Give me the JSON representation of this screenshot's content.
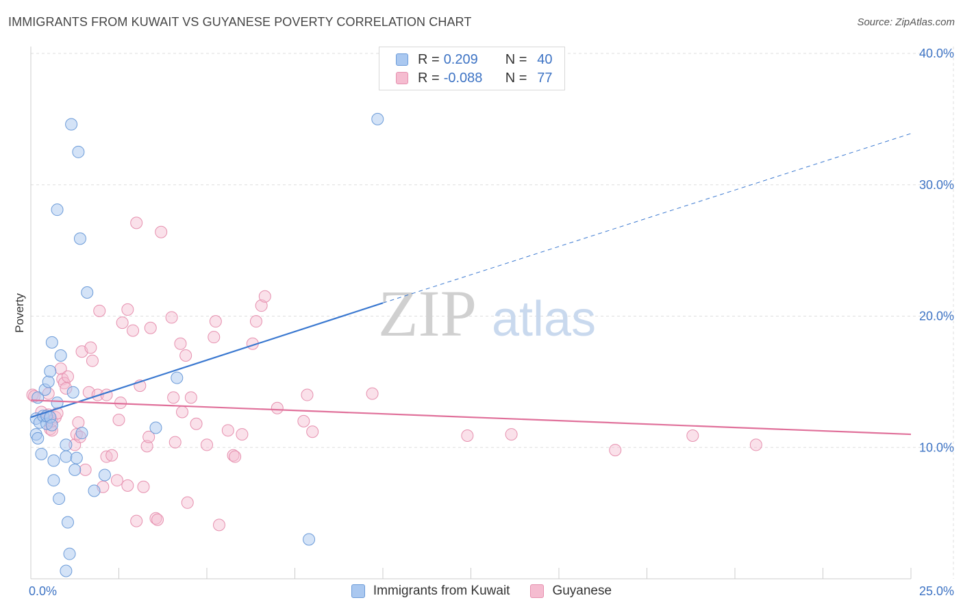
{
  "title": "IMMIGRANTS FROM KUWAIT VS GUYANESE POVERTY CORRELATION CHART",
  "source": "Source: ZipAtlas.com",
  "watermark": {
    "zip": "ZIP",
    "atlas": "atlas"
  },
  "legend": {
    "rows": [
      {
        "r_label": "R =",
        "r_value": "0.209",
        "n_label": "N =",
        "n_value": "40"
      },
      {
        "r_label": "R =",
        "r_value": "-0.088",
        "n_label": "N =",
        "n_value": "77"
      }
    ]
  },
  "bottom_legend": [
    "Immigrants from Kuwait",
    "Guyanese"
  ],
  "colors": {
    "blue_fill": "#aac8f0",
    "blue_stroke": "#6a9ad8",
    "blue_line": "#3a78d0",
    "pink_fill": "#f5bcd0",
    "pink_stroke": "#e68fae",
    "pink_line": "#e0709a",
    "grid": "#dddddd",
    "axis_text": "#3d73c4"
  },
  "chart_data": {
    "type": "scatter",
    "title": "IMMIGRANTS FROM KUWAIT VS GUYANESE POVERTY CORRELATION CHART",
    "xlabel": "",
    "ylabel": "Poverty",
    "xlim": [
      0,
      25
    ],
    "ylim": [
      0,
      40
    ],
    "x_tick_labels": [
      "0.0%",
      "25.0%"
    ],
    "y_tick_labels": [
      "10.0%",
      "20.0%",
      "30.0%",
      "40.0%"
    ],
    "y_ticks": [
      10,
      20,
      30,
      40
    ],
    "grid": true,
    "legend_position": "top-center",
    "series": [
      {
        "name": "Immigrants from Kuwait",
        "r": 0.209,
        "n": 40,
        "trend": {
          "x_solid": [
            0,
            10
          ],
          "y_solid": [
            12.3,
            21.0
          ],
          "x_dashed": [
            10,
            25
          ],
          "y_dashed": [
            21.0,
            33.9
          ]
        },
        "points": [
          [
            0.15,
            12.2
          ],
          [
            0.15,
            11.0
          ],
          [
            0.2,
            10.7
          ],
          [
            0.2,
            13.8
          ],
          [
            0.25,
            11.9
          ],
          [
            0.3,
            9.5
          ],
          [
            0.35,
            12.4
          ],
          [
            0.4,
            14.4
          ],
          [
            0.45,
            11.8
          ],
          [
            0.45,
            12.4
          ],
          [
            0.5,
            15.0
          ],
          [
            0.55,
            15.8
          ],
          [
            0.55,
            12.3
          ],
          [
            0.6,
            18.0
          ],
          [
            0.6,
            11.7
          ],
          [
            0.65,
            9.0
          ],
          [
            0.65,
            7.5
          ],
          [
            0.75,
            13.4
          ],
          [
            0.75,
            28.1
          ],
          [
            0.8,
            6.1
          ],
          [
            0.85,
            17.0
          ],
          [
            1.0,
            9.3
          ],
          [
            1.0,
            10.2
          ],
          [
            1.0,
            0.6
          ],
          [
            1.05,
            4.3
          ],
          [
            1.1,
            1.9
          ],
          [
            1.15,
            34.6
          ],
          [
            1.2,
            14.2
          ],
          [
            1.25,
            8.3
          ],
          [
            1.3,
            9.2
          ],
          [
            1.35,
            32.5
          ],
          [
            1.4,
            25.9
          ],
          [
            1.45,
            11.1
          ],
          [
            1.6,
            21.8
          ],
          [
            1.8,
            6.7
          ],
          [
            2.1,
            7.9
          ],
          [
            3.55,
            11.5
          ],
          [
            4.15,
            15.3
          ],
          [
            7.9,
            3.0
          ],
          [
            9.85,
            35.0
          ]
        ]
      },
      {
        "name": "Guyanese",
        "r": -0.088,
        "n": 77,
        "trend": {
          "x": [
            0,
            25
          ],
          "y": [
            13.6,
            11.0
          ]
        },
        "points": [
          [
            0.05,
            14.0
          ],
          [
            0.1,
            13.9
          ],
          [
            0.3,
            12.7
          ],
          [
            0.5,
            14.1
          ],
          [
            0.5,
            12.5
          ],
          [
            0.55,
            11.4
          ],
          [
            0.6,
            11.3
          ],
          [
            0.6,
            12.0
          ],
          [
            0.7,
            12.3
          ],
          [
            0.75,
            12.6
          ],
          [
            0.85,
            16.0
          ],
          [
            0.9,
            15.2
          ],
          [
            0.95,
            14.9
          ],
          [
            1.0,
            14.5
          ],
          [
            1.05,
            15.4
          ],
          [
            1.25,
            10.2
          ],
          [
            1.3,
            11.0
          ],
          [
            1.35,
            11.9
          ],
          [
            1.4,
            10.8
          ],
          [
            1.45,
            17.3
          ],
          [
            1.55,
            8.3
          ],
          [
            1.65,
            14.2
          ],
          [
            1.7,
            17.6
          ],
          [
            1.75,
            16.6
          ],
          [
            1.9,
            14.0
          ],
          [
            1.95,
            20.4
          ],
          [
            2.05,
            7.0
          ],
          [
            2.15,
            14.0
          ],
          [
            2.15,
            9.3
          ],
          [
            2.3,
            9.4
          ],
          [
            2.45,
            7.5
          ],
          [
            2.5,
            12.1
          ],
          [
            2.55,
            13.4
          ],
          [
            2.6,
            19.5
          ],
          [
            2.75,
            20.5
          ],
          [
            2.75,
            7.1
          ],
          [
            2.9,
            18.9
          ],
          [
            3.0,
            27.1
          ],
          [
            3.0,
            4.4
          ],
          [
            3.1,
            14.7
          ],
          [
            3.2,
            7.0
          ],
          [
            3.3,
            10.1
          ],
          [
            3.35,
            10.8
          ],
          [
            3.4,
            19.1
          ],
          [
            3.55,
            4.6
          ],
          [
            3.6,
            4.5
          ],
          [
            3.7,
            26.4
          ],
          [
            4.0,
            19.9
          ],
          [
            4.05,
            13.8
          ],
          [
            4.1,
            10.4
          ],
          [
            4.25,
            17.9
          ],
          [
            4.3,
            12.7
          ],
          [
            4.4,
            17.0
          ],
          [
            4.45,
            5.8
          ],
          [
            4.55,
            13.8
          ],
          [
            4.7,
            11.8
          ],
          [
            5.0,
            10.2
          ],
          [
            5.2,
            18.4
          ],
          [
            5.25,
            19.6
          ],
          [
            5.35,
            4.1
          ],
          [
            5.6,
            11.3
          ],
          [
            5.75,
            9.4
          ],
          [
            5.8,
            9.3
          ],
          [
            6.0,
            11.0
          ],
          [
            6.3,
            17.9
          ],
          [
            6.4,
            19.6
          ],
          [
            6.55,
            20.8
          ],
          [
            6.65,
            21.5
          ],
          [
            7.0,
            13.0
          ],
          [
            7.75,
            12.0
          ],
          [
            7.85,
            14.0
          ],
          [
            8.0,
            11.2
          ],
          [
            9.7,
            14.1
          ],
          [
            12.4,
            10.9
          ],
          [
            13.65,
            11.0
          ],
          [
            16.6,
            9.8
          ],
          [
            18.8,
            10.9
          ],
          [
            20.6,
            10.2
          ]
        ]
      }
    ]
  }
}
